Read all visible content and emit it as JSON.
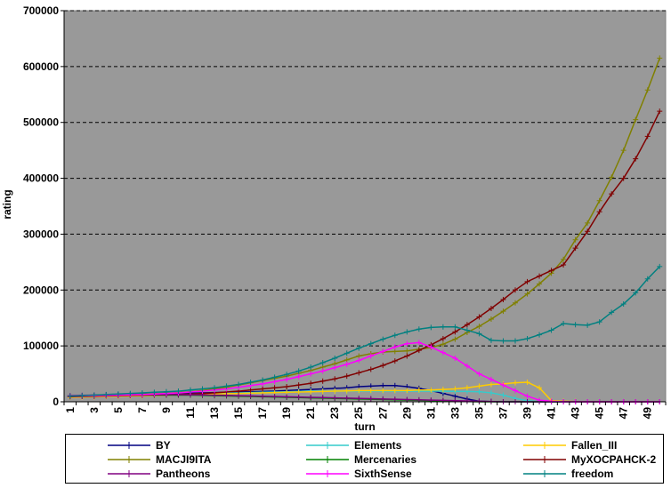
{
  "chart_data": {
    "type": "line",
    "xlabel": "turn",
    "ylabel": "rating",
    "x": [
      1,
      2,
      3,
      4,
      5,
      6,
      7,
      8,
      9,
      10,
      11,
      12,
      13,
      14,
      15,
      16,
      17,
      18,
      19,
      20,
      21,
      22,
      23,
      24,
      25,
      26,
      27,
      28,
      29,
      30,
      31,
      32,
      33,
      34,
      35,
      36,
      37,
      38,
      39,
      40,
      41,
      42,
      43,
      44,
      45,
      46,
      47,
      48,
      49,
      50
    ],
    "x_tick_labels": [
      "1",
      "3",
      "5",
      "7",
      "9",
      "11",
      "13",
      "15",
      "17",
      "19",
      "21",
      "23",
      "25",
      "27",
      "29",
      "31",
      "33",
      "35",
      "37",
      "39",
      "41",
      "43",
      "45",
      "47",
      "49"
    ],
    "ylim": [
      0,
      700000
    ],
    "y_tick_labels": [
      "0",
      "100000",
      "200000",
      "300000",
      "400000",
      "500000",
      "600000",
      "700000"
    ],
    "grid": "horizontal dashed",
    "legend_position": "bottom",
    "plot_background": "#999999",
    "series": [
      {
        "name": "BY",
        "color": "#000080",
        "values": [
          10000,
          11000,
          11500,
          12000,
          12500,
          13000,
          13500,
          14000,
          14500,
          15000,
          15500,
          16000,
          16500,
          17000,
          17500,
          18000,
          18500,
          19000,
          20000,
          21000,
          22000,
          23000,
          24000,
          25000,
          27000,
          28000,
          29000,
          29000,
          27000,
          24000,
          20000,
          15000,
          10000,
          5000,
          1000,
          500,
          0,
          0,
          0,
          0,
          0,
          0,
          0,
          0,
          0,
          0,
          0,
          0,
          0,
          0
        ]
      },
      {
        "name": "Elements",
        "color": "#33cccc",
        "values": [
          9000,
          9500,
          10000,
          10500,
          11000,
          11500,
          12000,
          12500,
          13000,
          13500,
          14000,
          14500,
          15000,
          15500,
          16000,
          16500,
          17000,
          17500,
          18000,
          18500,
          19000,
          19000,
          19000,
          19000,
          19000,
          19000,
          19000,
          19000,
          19000,
          19000,
          19000,
          19000,
          18500,
          18500,
          18000,
          16000,
          12000,
          6000,
          2000,
          500,
          0,
          0,
          0,
          0,
          0,
          0,
          0,
          0,
          0,
          0
        ]
      },
      {
        "name": "Fallen_III",
        "color": "#ffcc00",
        "values": [
          8000,
          8500,
          9000,
          9500,
          10000,
          10500,
          11000,
          11500,
          12000,
          12500,
          13000,
          13500,
          14000,
          14500,
          15000,
          15500,
          16000,
          16500,
          17000,
          17500,
          18000,
          18500,
          19000,
          19500,
          20000,
          20000,
          20000,
          20000,
          20000,
          21000,
          21000,
          22000,
          23000,
          25000,
          28000,
          31000,
          32000,
          34000,
          35000,
          25000,
          2000,
          1000,
          500,
          0,
          0,
          0,
          0,
          0,
          0,
          0
        ]
      },
      {
        "name": "MACJI9ITA",
        "color": "#808000",
        "values": [
          10000,
          10500,
          11000,
          11500,
          12000,
          12500,
          13500,
          14500,
          15500,
          16500,
          18000,
          20000,
          23000,
          26000,
          30000,
          34000,
          38000,
          42000,
          46000,
          51000,
          56000,
          62000,
          68000,
          75000,
          82000,
          86000,
          89000,
          90000,
          91000,
          94000,
          97000,
          103000,
          112000,
          124000,
          135000,
          148000,
          162000,
          177000,
          193000,
          211000,
          230000,
          255000,
          290000,
          320000,
          360000,
          402000,
          450000,
          505000,
          558000,
          615000
        ]
      },
      {
        "name": "Mercenaries",
        "color": "#008000",
        "values": [
          10000,
          10500,
          11000,
          11500,
          12000,
          12000,
          12000,
          12000,
          12000,
          12000,
          12000,
          11500,
          11000,
          10500,
          10000,
          9500,
          9000,
          8500,
          8000,
          7500,
          7000,
          6500,
          6000,
          5500,
          5000,
          4500,
          4000,
          3500,
          3000,
          2500,
          2000,
          1500,
          1000,
          500,
          0,
          0,
          0,
          0,
          0,
          0,
          0,
          0,
          0,
          0,
          0,
          0,
          0,
          0,
          0,
          0
        ]
      },
      {
        "name": "MyXOCPAHCK-2",
        "color": "#800000",
        "values": [
          9000,
          9500,
          10000,
          10500,
          11000,
          11500,
          12000,
          12500,
          13000,
          13500,
          14000,
          15000,
          16000,
          17500,
          19000,
          21000,
          23000,
          25000,
          27000,
          30000,
          33000,
          37000,
          41000,
          46000,
          52000,
          58000,
          65000,
          73000,
          82000,
          92000,
          102000,
          113000,
          125000,
          138000,
          152000,
          167000,
          183000,
          200000,
          215000,
          225000,
          235000,
          245000,
          275000,
          305000,
          340000,
          372000,
          400000,
          435000,
          475000,
          520000
        ]
      },
      {
        "name": "Pantheons",
        "color": "#800080",
        "values": [
          11000,
          11500,
          12000,
          12500,
          13000,
          13000,
          13000,
          13000,
          13000,
          13000,
          12500,
          12500,
          12000,
          11500,
          11000,
          10500,
          10000,
          9500,
          9000,
          8500,
          8000,
          7500,
          7000,
          6500,
          6000,
          5500,
          5000,
          4500,
          4000,
          3500,
          3000,
          2500,
          2000,
          1500,
          1000,
          500,
          0,
          0,
          0,
          0,
          0,
          0,
          0,
          0,
          0,
          0,
          0,
          0,
          0,
          0
        ]
      },
      {
        "name": "SixthSense",
        "color": "#ff00ff",
        "values": [
          10000,
          10500,
          11000,
          11500,
          12000,
          12500,
          13000,
          14000,
          15000,
          16000,
          17500,
          19000,
          21000,
          23000,
          26000,
          29000,
          32000,
          36000,
          40000,
          45000,
          50000,
          55000,
          61000,
          67000,
          74000,
          82000,
          90000,
          98000,
          104000,
          106000,
          98000,
          88000,
          78000,
          64000,
          50000,
          40000,
          30000,
          20000,
          10000,
          3000,
          1000,
          0,
          0,
          0,
          0,
          0,
          0,
          0,
          0,
          0
        ]
      },
      {
        "name": "freedom",
        "color": "#008080",
        "values": [
          10000,
          11000,
          12000,
          13000,
          14000,
          15000,
          16000,
          17000,
          18000,
          19000,
          21000,
          23000,
          25000,
          28000,
          31000,
          35000,
          39000,
          44000,
          49000,
          55000,
          62000,
          70000,
          78000,
          87000,
          96000,
          104000,
          112000,
          119000,
          125000,
          130000,
          133000,
          134000,
          134000,
          128000,
          122000,
          110000,
          109000,
          109000,
          113000,
          120000,
          128000,
          140000,
          138000,
          137000,
          143000,
          160000,
          175000,
          195000,
          220000,
          242000
        ]
      }
    ]
  }
}
